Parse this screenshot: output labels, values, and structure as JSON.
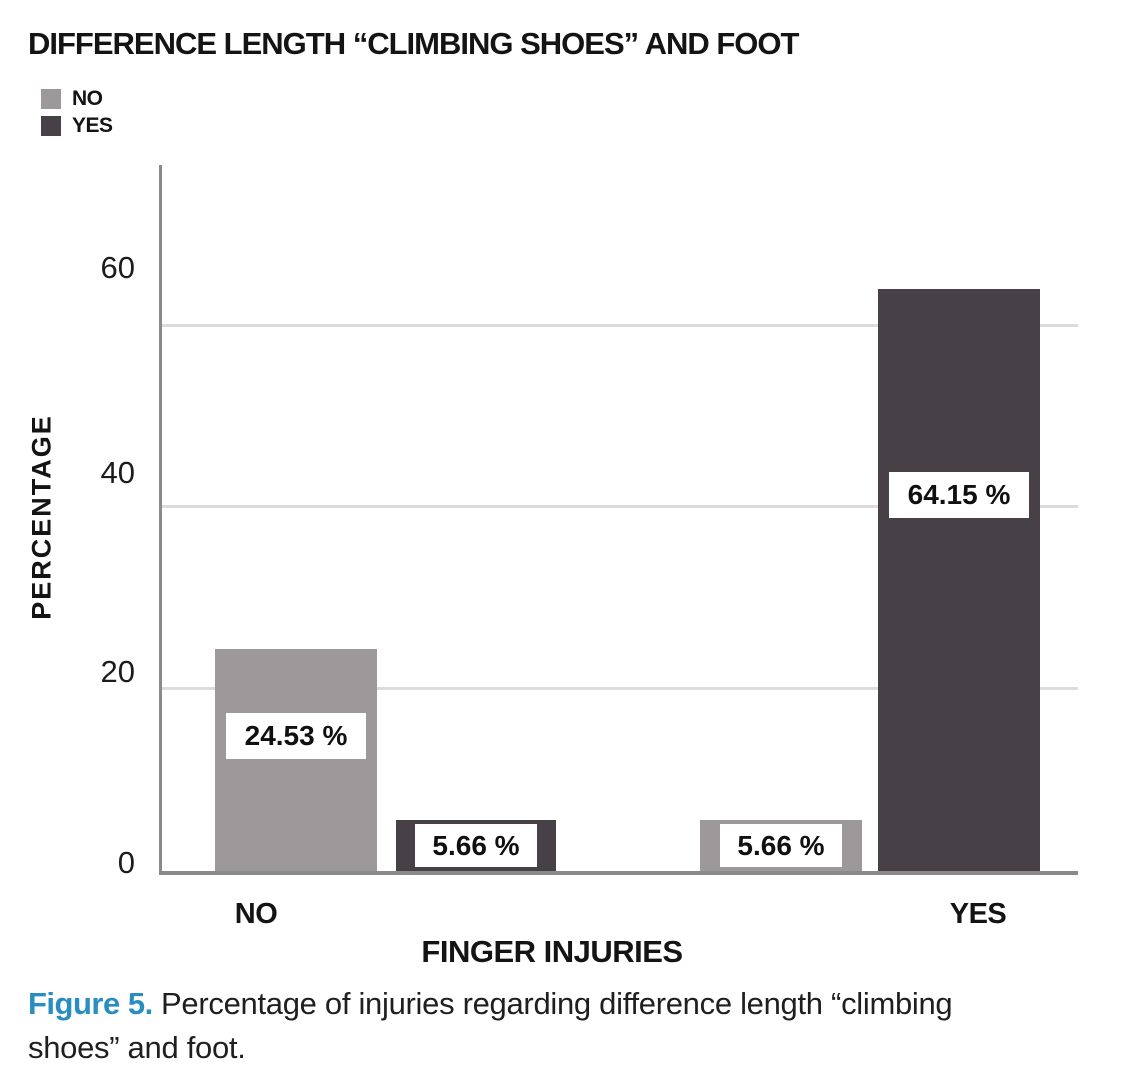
{
  "title": "DIFFERENCE LENGTH “CLIMBING SHOES” AND FOOT",
  "legend": {
    "items": [
      {
        "label": "NO",
        "color": "#9d9899"
      },
      {
        "label": "YES",
        "color": "#474046"
      }
    ]
  },
  "y_axis": {
    "label": "PERCENTAGE",
    "ticks": [
      "0",
      "20",
      "40",
      "60"
    ]
  },
  "x_axis": {
    "label": "FINGER INJURIES",
    "categories": [
      "NO",
      "YES"
    ]
  },
  "caption": {
    "prefix": "Figure 5.",
    "line1": "Percentage of injuries regarding difference length “climbing",
    "line2": "shoes” and foot."
  },
  "colors": {
    "series_no": "#9d9899",
    "series_yes": "#474046",
    "accent_blue": "#2a8dbf",
    "gridline": "#dcdcdc",
    "axis": "#8a8a8a",
    "text": "#141414"
  },
  "chart_data": {
    "type": "bar",
    "title": "DIFFERENCE LENGTH “CLIMBING SHOES” AND FOOT",
    "categories": [
      "NO",
      "YES"
    ],
    "series": [
      {
        "name": "NO",
        "values": [
          24.53,
          5.66
        ]
      },
      {
        "name": "YES",
        "values": [
          5.66,
          64.15
        ]
      }
    ],
    "value_labels": [
      "24.53 %",
      "5.66 %",
      "5.66 %",
      "64.15 %"
    ],
    "xlabel": "FINGER INJURIES",
    "ylabel": "PERCENTAGE",
    "ylim": [
      0,
      78
    ],
    "yticks": [
      0,
      20,
      40,
      60
    ],
    "grid": true,
    "legend_position": "top-left"
  }
}
